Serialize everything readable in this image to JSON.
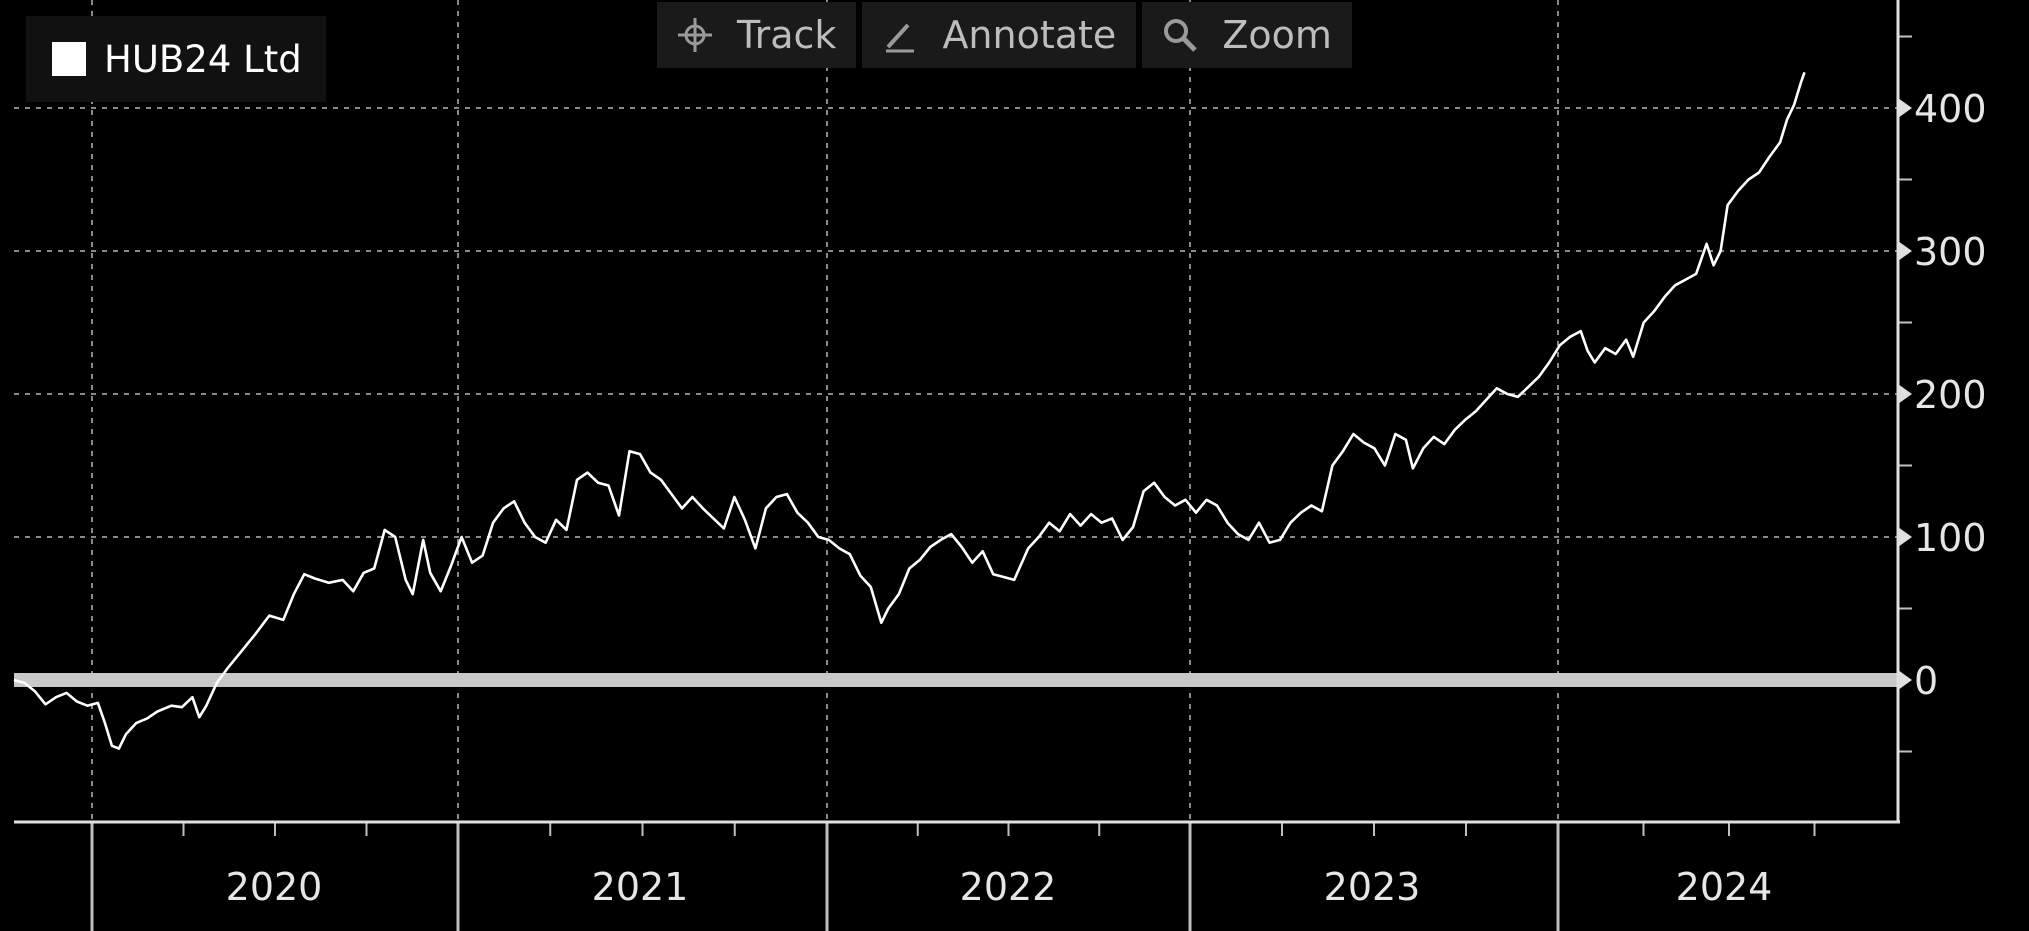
{
  "legend": {
    "label": "HUB24 Ltd",
    "swatch_color": "#ffffff"
  },
  "toolbar": {
    "track_label": "Track",
    "annotate_label": "Annotate",
    "zoom_label": "Zoom"
  },
  "colors": {
    "background": "#000000",
    "line": "#ffffff",
    "baseline": "#c8c8c8",
    "grid": "#8a8a8a"
  },
  "chart_data": {
    "type": "line",
    "title": "",
    "xlabel": "",
    "ylabel": "",
    "grid": true,
    "legend_position": "top-left",
    "x_ticks": [
      "2020",
      "2021",
      "2022",
      "2023",
      "2024"
    ],
    "y_ticks": [
      0,
      100,
      200,
      300,
      400
    ],
    "xlim": [
      2019.6,
      2024.85
    ],
    "ylim": [
      -100,
      430
    ],
    "baseline": 0,
    "series": [
      {
        "name": "HUB24 Ltd",
        "points": [
          [
            2019.6,
            0
          ],
          [
            2019.63,
            -2
          ],
          [
            2019.66,
            -8
          ],
          [
            2019.69,
            -17
          ],
          [
            2019.72,
            -12
          ],
          [
            2019.75,
            -9
          ],
          [
            2019.78,
            -15
          ],
          [
            2019.81,
            -18
          ],
          [
            2019.84,
            -16
          ],
          [
            2019.86,
            -30
          ],
          [
            2019.88,
            -46
          ],
          [
            2019.9,
            -48
          ],
          [
            2019.92,
            -38
          ],
          [
            2019.95,
            -30
          ],
          [
            2019.98,
            -27
          ],
          [
            2020.01,
            -22
          ],
          [
            2020.05,
            -18
          ],
          [
            2020.08,
            -19
          ],
          [
            2020.11,
            -12
          ],
          [
            2020.13,
            -26
          ],
          [
            2020.15,
            -18
          ],
          [
            2020.18,
            -2
          ],
          [
            2020.21,
            8
          ],
          [
            2020.25,
            20
          ],
          [
            2020.29,
            32
          ],
          [
            2020.33,
            45
          ],
          [
            2020.37,
            42
          ],
          [
            2020.4,
            60
          ],
          [
            2020.43,
            74
          ],
          [
            2020.46,
            71
          ],
          [
            2020.5,
            68
          ],
          [
            2020.54,
            70
          ],
          [
            2020.57,
            62
          ],
          [
            2020.6,
            75
          ],
          [
            2020.63,
            78
          ],
          [
            2020.66,
            105
          ],
          [
            2020.69,
            100
          ],
          [
            2020.72,
            70
          ],
          [
            2020.74,
            60
          ],
          [
            2020.77,
            98
          ],
          [
            2020.79,
            75
          ],
          [
            2020.82,
            62
          ],
          [
            2020.85,
            80
          ],
          [
            2020.88,
            100
          ],
          [
            2020.91,
            82
          ],
          [
            2020.94,
            87
          ],
          [
            2020.97,
            110
          ],
          [
            2021.0,
            120
          ],
          [
            2021.03,
            125
          ],
          [
            2021.06,
            110
          ],
          [
            2021.09,
            100
          ],
          [
            2021.12,
            96
          ],
          [
            2021.15,
            112
          ],
          [
            2021.18,
            105
          ],
          [
            2021.21,
            140
          ],
          [
            2021.24,
            145
          ],
          [
            2021.27,
            138
          ],
          [
            2021.3,
            136
          ],
          [
            2021.33,
            115
          ],
          [
            2021.36,
            160
          ],
          [
            2021.39,
            158
          ],
          [
            2021.42,
            145
          ],
          [
            2021.45,
            140
          ],
          [
            2021.48,
            130
          ],
          [
            2021.51,
            120
          ],
          [
            2021.54,
            128
          ],
          [
            2021.57,
            120
          ],
          [
            2021.6,
            113
          ],
          [
            2021.63,
            106
          ],
          [
            2021.66,
            128
          ],
          [
            2021.69,
            112
          ],
          [
            2021.72,
            92
          ],
          [
            2021.75,
            120
          ],
          [
            2021.78,
            128
          ],
          [
            2021.81,
            130
          ],
          [
            2021.84,
            117
          ],
          [
            2021.87,
            110
          ],
          [
            2021.9,
            100
          ],
          [
            2021.93,
            98
          ],
          [
            2021.96,
            92
          ],
          [
            2021.99,
            88
          ],
          [
            2022.02,
            73
          ],
          [
            2022.05,
            65
          ],
          [
            2022.08,
            40
          ],
          [
            2022.1,
            50
          ],
          [
            2022.13,
            60
          ],
          [
            2022.16,
            78
          ],
          [
            2022.19,
            84
          ],
          [
            2022.22,
            93
          ],
          [
            2022.25,
            98
          ],
          [
            2022.28,
            102
          ],
          [
            2022.31,
            93
          ],
          [
            2022.34,
            82
          ],
          [
            2022.37,
            90
          ],
          [
            2022.4,
            74
          ],
          [
            2022.43,
            72
          ],
          [
            2022.46,
            70
          ],
          [
            2022.5,
            92
          ],
          [
            2022.53,
            100
          ],
          [
            2022.56,
            110
          ],
          [
            2022.59,
            104
          ],
          [
            2022.62,
            116
          ],
          [
            2022.65,
            108
          ],
          [
            2022.68,
            116
          ],
          [
            2022.71,
            110
          ],
          [
            2022.74,
            113
          ],
          [
            2022.77,
            98
          ],
          [
            2022.8,
            107
          ],
          [
            2022.83,
            132
          ],
          [
            2022.86,
            138
          ],
          [
            2022.89,
            128
          ],
          [
            2022.92,
            122
          ],
          [
            2022.95,
            126
          ],
          [
            2022.98,
            117
          ],
          [
            2023.01,
            126
          ],
          [
            2023.04,
            122
          ],
          [
            2023.07,
            110
          ],
          [
            2023.1,
            102
          ],
          [
            2023.13,
            98
          ],
          [
            2023.16,
            110
          ],
          [
            2023.19,
            96
          ],
          [
            2023.22,
            98
          ],
          [
            2023.25,
            110
          ],
          [
            2023.28,
            117
          ],
          [
            2023.31,
            122
          ],
          [
            2023.34,
            118
          ],
          [
            2023.37,
            150
          ],
          [
            2023.4,
            160
          ],
          [
            2023.43,
            172
          ],
          [
            2023.46,
            166
          ],
          [
            2023.49,
            162
          ],
          [
            2023.52,
            150
          ],
          [
            2023.55,
            172
          ],
          [
            2023.58,
            168
          ],
          [
            2023.6,
            148
          ],
          [
            2023.63,
            162
          ],
          [
            2023.66,
            170
          ],
          [
            2023.69,
            165
          ],
          [
            2023.72,
            175
          ],
          [
            2023.75,
            182
          ],
          [
            2023.78,
            188
          ],
          [
            2023.81,
            196
          ],
          [
            2023.84,
            204
          ],
          [
            2023.87,
            200
          ],
          [
            2023.9,
            198
          ],
          [
            2023.93,
            205
          ],
          [
            2023.96,
            212
          ],
          [
            2023.99,
            222
          ],
          [
            2024.02,
            234
          ],
          [
            2024.05,
            240
          ],
          [
            2024.08,
            244
          ],
          [
            2024.1,
            230
          ],
          [
            2024.12,
            222
          ],
          [
            2024.15,
            232
          ],
          [
            2024.18,
            228
          ],
          [
            2024.21,
            238
          ],
          [
            2024.23,
            226
          ],
          [
            2024.26,
            250
          ],
          [
            2024.29,
            258
          ],
          [
            2024.32,
            268
          ],
          [
            2024.35,
            276
          ],
          [
            2024.38,
            280
          ],
          [
            2024.41,
            284
          ],
          [
            2024.44,
            305
          ],
          [
            2024.46,
            290
          ],
          [
            2024.48,
            300
          ],
          [
            2024.5,
            332
          ],
          [
            2024.53,
            342
          ],
          [
            2024.56,
            350
          ],
          [
            2024.59,
            355
          ],
          [
            2024.62,
            366
          ],
          [
            2024.65,
            376
          ],
          [
            2024.67,
            392
          ],
          [
            2024.69,
            402
          ],
          [
            2024.71,
            418
          ],
          [
            2024.72,
            425
          ]
        ]
      }
    ]
  }
}
